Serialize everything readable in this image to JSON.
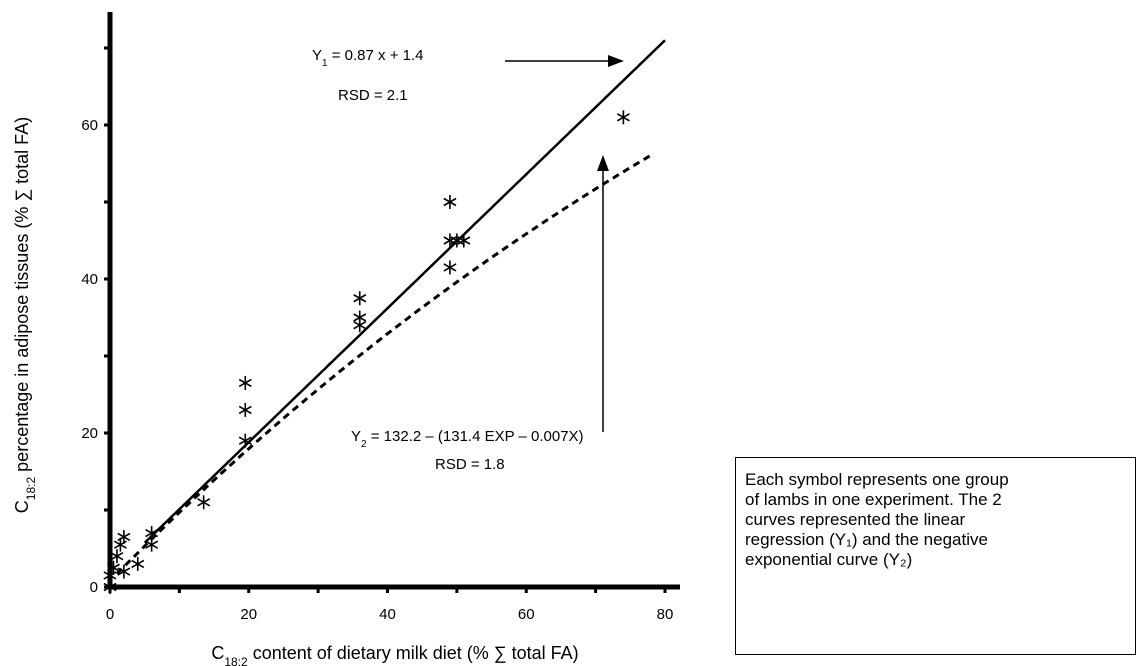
{
  "chart_data": {
    "type": "scatter",
    "xlabel": "C18:2 content of dietary milk diet (% ∑ total FA)",
    "ylabel": "C18:2 percentage in adipose tissues (% ∑ total FA)",
    "xlim": [
      0,
      80
    ],
    "ylim": [
      0,
      73
    ],
    "x_ticks": [
      0,
      20,
      40,
      60,
      80
    ],
    "y_ticks": [
      0,
      20,
      40,
      60
    ],
    "grid": false,
    "points": [
      {
        "x": 0,
        "y": 0
      },
      {
        "x": 0,
        "y": 1.5
      },
      {
        "x": 0.5,
        "y": 2.5
      },
      {
        "x": 1,
        "y": 4
      },
      {
        "x": 1.5,
        "y": 5.5
      },
      {
        "x": 2,
        "y": 6.5
      },
      {
        "x": 2,
        "y": 2
      },
      {
        "x": 4,
        "y": 3
      },
      {
        "x": 6,
        "y": 5.5
      },
      {
        "x": 6,
        "y": 7
      },
      {
        "x": 13.5,
        "y": 11
      },
      {
        "x": 19.5,
        "y": 19
      },
      {
        "x": 19.5,
        "y": 23
      },
      {
        "x": 19.5,
        "y": 26.5
      },
      {
        "x": 36,
        "y": 34
      },
      {
        "x": 36,
        "y": 35
      },
      {
        "x": 36,
        "y": 37.5
      },
      {
        "x": 49,
        "y": 41.5
      },
      {
        "x": 49,
        "y": 45
      },
      {
        "x": 50,
        "y": 45
      },
      {
        "x": 51,
        "y": 45
      },
      {
        "x": 49,
        "y": 50
      },
      {
        "x": 74,
        "y": 61
      }
    ],
    "lines": [
      {
        "name": "Y1",
        "style": "solid",
        "slope": 0.87,
        "intercept": 1.4,
        "x_range": [
          5,
          80
        ]
      },
      {
        "name": "Y2",
        "style": "dashed",
        "a": 132.2,
        "b": 131.4,
        "k": 0.007,
        "x_range": [
          1,
          78
        ]
      }
    ],
    "annotations": {
      "y1_equation": {
        "prefix": "Y",
        "subscript": "1",
        "rest": " = 0.87 x + 1.4",
        "rsd": "RSD = 2.1"
      },
      "y2_equation": {
        "prefix": "Y",
        "subscript": "2",
        "rest": " = 132.2 – (131.4 EXP – 0.007X)",
        "rsd": "RSD = 1.8"
      }
    },
    "axis_title_parts": {
      "x_prefix": "C",
      "x_sub": "18:2",
      "x_rest": " content of dietary milk diet (% ∑ total FA)",
      "y_prefix": "C",
      "y_sub": "18:2",
      "y_rest": " percentage in adipose tissues (% ∑ total FA)"
    }
  },
  "note": {
    "lines": [
      "Each symbol represents one group",
      "of lambs in one experiment. The 2",
      "curves represented the linear",
      "regression (Y₁) and the negative",
      "exponential curve (Y₂)"
    ]
  }
}
